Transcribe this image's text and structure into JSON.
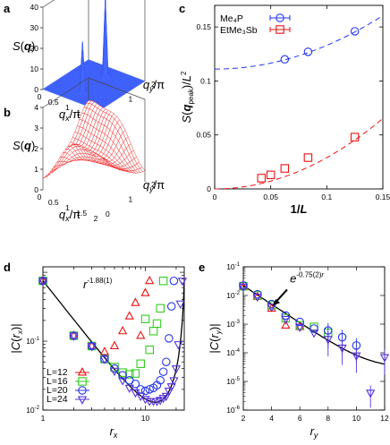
{
  "colors": {
    "blue": "#2233ee",
    "red": "#ee1111",
    "green": "#33cc22",
    "violet": "#5533dd",
    "surface_blue": "#3355ee",
    "surface_red": "#ee2222"
  },
  "chart_data": [
    {
      "panel": "a",
      "type": "surface3d",
      "zlabel": "S(q)",
      "xlabel": "qx/π",
      "ylabel": "qy/π",
      "z_ticks": [
        "0",
        "10",
        "20",
        "30",
        "40"
      ],
      "x_ticks": [
        "0",
        "0.5",
        "1",
        "1.5",
        "2"
      ],
      "y_ticks": [
        "0",
        "1",
        "2"
      ],
      "peaks": [
        {
          "qx": 1.0,
          "qy": 0.5,
          "S": 28
        },
        {
          "qx": 1.0,
          "qy": 1.5,
          "S": 45
        }
      ]
    },
    {
      "panel": "b",
      "type": "surface3d",
      "zlabel": "S(q)",
      "xlabel": "qx/π",
      "ylabel": "qy/π",
      "z_ticks": [
        "0",
        "1",
        "2",
        "3",
        "4"
      ],
      "x_ticks": [
        "0",
        "0.5",
        "1",
        "1.5",
        "2"
      ],
      "y_ticks": [
        "0",
        "1",
        "2"
      ]
    },
    {
      "panel": "c",
      "type": "scatter",
      "xlabel": "1/L",
      "ylabel": "S(q_peak)/L²",
      "xlim": [
        0,
        0.15
      ],
      "ylim": [
        0,
        0.17
      ],
      "x_ticks": [
        "0",
        "0.05",
        "0.1",
        "0.15"
      ],
      "y_ticks": [
        "0",
        "0.05",
        "0.1",
        "0.15"
      ],
      "legend_position": "top-left",
      "series": [
        {
          "name": "Me₄P",
          "x": [
            0.0625,
            0.0833,
            0.125
          ],
          "y": [
            0.12,
            0.127,
            0.146
          ],
          "fit": {
            "a": 0.111,
            "b": 2.2
          }
        },
        {
          "name": "EtMe₃Sb",
          "x": [
            0.0417,
            0.05,
            0.0625,
            0.0833,
            0.125
          ],
          "y": [
            0.01,
            0.013,
            0.019,
            0.029,
            0.048
          ],
          "fit": {
            "a": 0.0,
            "b": 2.9,
            "c": 0.0
          }
        }
      ]
    },
    {
      "panel": "d",
      "type": "scatter",
      "scale": "log-log",
      "xlabel": "rx",
      "ylabel": "|C(rx)|",
      "xlim": [
        1,
        24
      ],
      "ylim": [
        0.01,
        1.2
      ],
      "x_ticks": [
        "1",
        "10"
      ],
      "y_ticks": [
        "10⁻²",
        "10⁻¹"
      ],
      "annotation": "r^-1.88(1)",
      "legend_position": "bottom-left",
      "series": [
        {
          "name": "L=12",
          "x": [
            1,
            2,
            3,
            4,
            5,
            6,
            7,
            8,
            9,
            10,
            11
          ],
          "y": [
            0.75,
            0.12,
            0.085,
            0.07,
            0.085,
            0.14,
            0.23,
            0.36,
            0.12,
            0.5,
            0.75
          ]
        },
        {
          "name": "L=16",
          "x": [
            1,
            2,
            3,
            4,
            5,
            6,
            7,
            8,
            9,
            10,
            11,
            12,
            13,
            14,
            15
          ],
          "y": [
            0.75,
            0.12,
            0.085,
            0.055,
            0.042,
            0.035,
            0.033,
            0.034,
            0.047,
            0.21,
            0.075,
            0.14,
            0.18,
            0.3,
            0.75
          ]
        },
        {
          "name": "L=20",
          "x": [
            1,
            2,
            3,
            4,
            5,
            6,
            7,
            8,
            9,
            10,
            11,
            12,
            13,
            14,
            15,
            16,
            17,
            18,
            19
          ],
          "y": [
            0.75,
            0.12,
            0.085,
            0.055,
            0.04,
            0.032,
            0.027,
            0.024,
            0.02,
            0.019,
            0.02,
            0.021,
            0.023,
            0.027,
            0.036,
            0.05,
            0.11,
            0.32,
            0.75
          ]
        },
        {
          "name": "L=24",
          "x": [
            1,
            2,
            3,
            4,
            5,
            6,
            7,
            8,
            9,
            10,
            11,
            12,
            13,
            14,
            15,
            16,
            17,
            18,
            19,
            20,
            21,
            22,
            23
          ],
          "y": [
            0.75,
            0.12,
            0.085,
            0.055,
            0.037,
            0.027,
            0.021,
            0.018,
            0.016,
            0.0145,
            0.0135,
            0.0135,
            0.0135,
            0.014,
            0.015,
            0.016,
            0.019,
            0.022,
            0.027,
            0.04,
            0.09,
            0.35,
            0.75
          ]
        }
      ]
    },
    {
      "panel": "e",
      "type": "scatter",
      "scale": "semilog-y",
      "xlabel": "ry",
      "ylabel": "|C(ry)|",
      "xlim": [
        2,
        12
      ],
      "ylim": [
        1e-06,
        0.1
      ],
      "x_ticks": [
        "2",
        "4",
        "6",
        "8",
        "10",
        "12"
      ],
      "y_ticks": [
        "10⁻⁶",
        "10⁻⁵",
        "10⁻⁴",
        "10⁻³",
        "10⁻²",
        "10⁻¹"
      ],
      "annotation": "e^-0.75(2)r",
      "series": [
        {
          "name": "L=12",
          "x": [
            2,
            3,
            4,
            5,
            6
          ],
          "y": [
            0.02,
            0.009,
            0.0035,
            0.0009,
            0.0008
          ]
        },
        {
          "name": "L=16",
          "x": [
            2,
            3,
            4,
            5,
            6,
            7,
            8
          ],
          "y": [
            0.021,
            0.01,
            0.0045,
            0.0016,
            0.0009,
            0.0008,
            0.0005
          ]
        },
        {
          "name": "L=20",
          "x": [
            2,
            3,
            4,
            5,
            6,
            7,
            8,
            9,
            10
          ],
          "y": [
            0.022,
            0.011,
            0.005,
            0.002,
            0.0012,
            0.0007,
            0.0006,
            0.00035,
            0.00018
          ]
        },
        {
          "name": "L=24",
          "x": [
            2,
            3,
            4,
            5,
            6,
            7,
            8,
            9,
            10,
            11,
            12
          ],
          "y": [
            0.02,
            0.009,
            0.004,
            0.0015,
            0.0008,
            0.0005,
            0.0003,
            0.00015,
            8e-05,
            4e-06,
            7e-05
          ]
        }
      ]
    }
  ],
  "legend_d": [
    "L=12",
    "L=16",
    "L=20",
    "L=24"
  ]
}
